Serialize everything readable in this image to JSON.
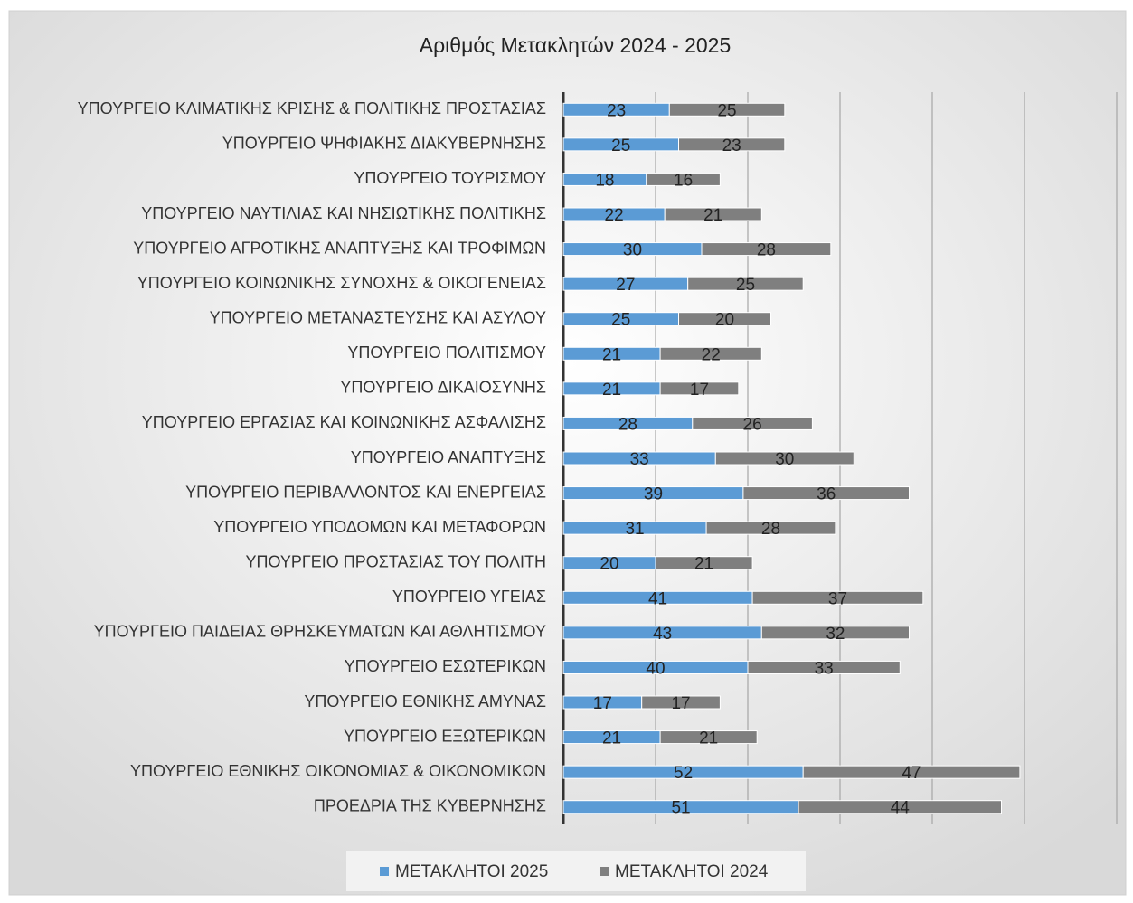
{
  "chart_data": {
    "type": "stacked-barh",
    "title": "Αριθμός Μετακλητών 2024 - 2025",
    "categories": [
      "ΥΠΟΥΡΓΕΙΟ ΚΛΙΜΑΤΙΚΗΣ ΚΡΙΣΗΣ & ΠΟΛΙΤΙΚΗΣ ΠΡΟΣΤΑΣΙΑΣ",
      "ΥΠΟΥΡΓΕΙΟ ΨΗΦΙΑΚΗΣ ΔΙΑΚΥΒΕΡΝΗΣΗΣ",
      "ΥΠΟΥΡΓΕΙΟ ΤΟΥΡΙΣΜΟΥ",
      "ΥΠΟΥΡΓΕΙΟ ΝΑΥΤΙΛΙΑΣ ΚΑΙ ΝΗΣΙΩΤΙΚΗΣ ΠΟΛΙΤΙΚΗΣ",
      "ΥΠΟΥΡΓΕΙΟ ΑΓΡΟΤΙΚΗΣ ΑΝΑΠΤΥΞΗΣ ΚΑΙ ΤΡΟΦΙΜΩΝ",
      "ΥΠΟΥΡΓΕΙΟ ΚΟΙΝΩΝΙΚΗΣ ΣΥΝΟΧΗΣ & ΟΙΚΟΓΕΝΕΙΑΣ",
      "ΥΠΟΥΡΓΕΙΟ ΜΕΤΑΝΑΣΤΕΥΣΗΣ ΚΑΙ ΑΣΥΛΟΥ",
      "ΥΠΟΥΡΓΕΙΟ ΠΟΛΙΤΙΣΜΟΥ",
      "ΥΠΟΥΡΓΕΙΟ ΔΙΚΑΙΟΣΥΝΗΣ",
      "ΥΠΟΥΡΓΕΙΟ ΕΡΓΑΣΙΑΣ ΚΑΙ ΚΟΙΝΩΝΙΚΗΣ ΑΣΦΑΛΙΣΗΣ",
      "ΥΠΟΥΡΓΕΙΟ ΑΝΑΠΤΥΞΗΣ",
      "ΥΠΟΥΡΓΕΙΟ ΠΕΡΙΒΑΛΛΟΝΤΟΣ ΚΑΙ ΕΝΕΡΓΕΙΑΣ",
      "ΥΠΟΥΡΓΕΙΟ ΥΠΟΔΟΜΩΝ ΚΑΙ ΜΕΤΑΦΟΡΩΝ",
      "ΥΠΟΥΡΓΕΙΟ ΠΡΟΣΤΑΣΙΑΣ ΤΟΥ ΠΟΛΙΤΗ",
      "ΥΠΟΥΡΓΕΙΟ ΥΓΕΙΑΣ",
      "ΥΠΟΥΡΓΕΙΟ ΠΑΙΔΕΙΑΣ ΘΡΗΣΚΕΥΜΑΤΩΝ ΚΑΙ ΑΘΛΗΤΙΣΜΟΥ",
      "ΥΠΟΥΡΓΕΙΟ ΕΣΩΤΕΡΙΚΩΝ",
      "ΥΠΟΥΡΓΕΙΟ ΕΘΝΙΚΗΣ ΑΜΥΝΑΣ",
      "ΥΠΟΥΡΓΕΙΟ ΕΞΩΤΕΡΙΚΩΝ",
      "ΥΠΟΥΡΓΕΙΟ ΕΘΝΙΚΗΣ ΟΙΚΟΝΟΜΙΑΣ & ΟΙΚΟΝΟΜΙΚΩΝ",
      "ΠΡΟΕΔΡΙΑ ΤΗΣ ΚΥΒΕΡΝΗΣΗΣ"
    ],
    "series": [
      {
        "name": "ΜΕΤΑΚΛΗΤΟΙ 2025",
        "color": "#5b9bd5",
        "values": [
          23,
          25,
          18,
          22,
          30,
          27,
          25,
          21,
          21,
          28,
          33,
          39,
          31,
          20,
          41,
          43,
          40,
          17,
          21,
          52,
          51
        ]
      },
      {
        "name": "ΜΕΤΑΚΛΗΤΟΙ 2024",
        "color": "#7f7f7f",
        "values": [
          25,
          23,
          16,
          21,
          28,
          25,
          20,
          22,
          17,
          26,
          30,
          36,
          28,
          21,
          37,
          32,
          33,
          17,
          21,
          47,
          44
        ]
      }
    ],
    "xlim": [
      0,
      120
    ],
    "xticks": [
      0,
      20,
      40,
      60,
      80,
      100,
      120
    ],
    "grid": true,
    "legend": "bottom"
  }
}
